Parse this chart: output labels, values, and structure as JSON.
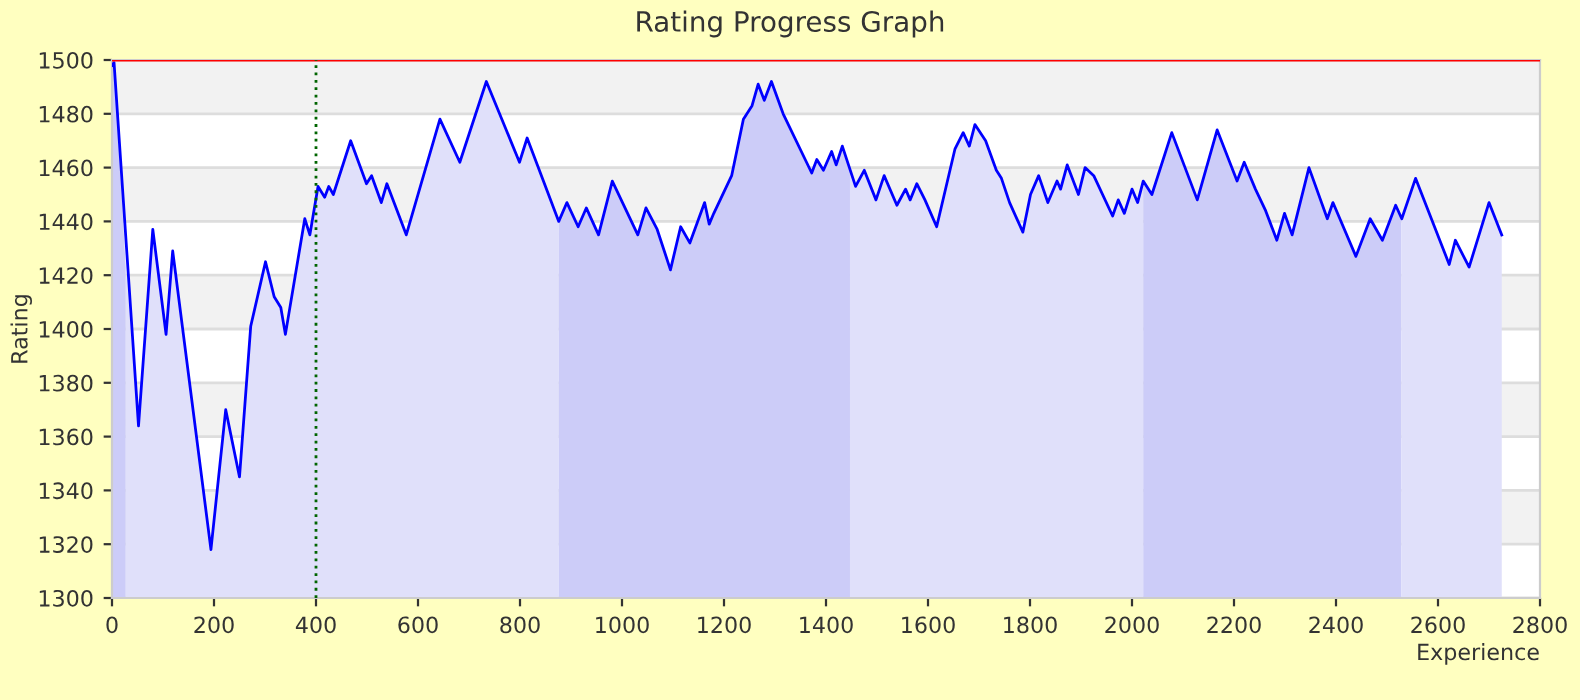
{
  "chart_data": {
    "type": "area",
    "title": "Rating Progress Graph",
    "xlabel": "Experience",
    "ylabel": "Rating",
    "xlim": [
      0,
      2800
    ],
    "xticks": [
      0,
      200,
      400,
      600,
      800,
      1000,
      1200,
      1400,
      1600,
      1800,
      2000,
      2200,
      2400,
      2600,
      2800
    ],
    "ylim": [
      1300,
      1500
    ],
    "yticks": [
      1300,
      1320,
      1340,
      1360,
      1380,
      1400,
      1420,
      1440,
      1460,
      1480,
      1500
    ],
    "grid": "y",
    "legend": false,
    "marker": "none",
    "line_style": "solid",
    "ref_lines": [
      {
        "axis": "y",
        "value": 1500,
        "color": "#ff0000",
        "line_style": "solid"
      },
      {
        "axis": "x",
        "value": 400,
        "color": "#006400",
        "line_style": "dotted"
      }
    ],
    "series": [
      {
        "type": "area",
        "color": "#ccccf8",
        "x": [
          0,
          4,
          27
        ],
        "values": [
          1498,
          1499,
          1423
        ]
      },
      {
        "type": "area",
        "color": "#e0e0fa",
        "x": [
          27,
          52,
          80,
          106,
          119,
          194,
          223,
          250,
          272,
          301,
          318,
          331,
          340,
          378,
          388,
          404,
          417,
          425,
          434,
          468,
          499,
          509,
          528,
          539,
          577,
          643,
          682,
          734,
          799,
          814,
          876
        ],
        "values": [
          1423,
          1364,
          1437,
          1398,
          1429,
          1318,
          1370,
          1345,
          1401,
          1425,
          1412,
          1408,
          1398,
          1441,
          1435,
          1453,
          1449,
          1453,
          1450,
          1470,
          1454,
          1457,
          1447,
          1454,
          1435,
          1478,
          1462,
          1492,
          1462,
          1471,
          1440
        ]
      },
      {
        "type": "area",
        "color": "#ccccf8",
        "x": [
          876,
          892,
          914,
          930,
          954,
          981,
          1031,
          1047,
          1069,
          1095,
          1115,
          1133,
          1162,
          1171,
          1180,
          1215,
          1238,
          1255,
          1267,
          1279,
          1293,
          1316,
          1372,
          1382,
          1395,
          1411,
          1420,
          1432,
          1447
        ],
        "values": [
          1440,
          1447,
          1438,
          1445,
          1435,
          1455,
          1435,
          1445,
          1437,
          1422,
          1438,
          1432,
          1447,
          1439,
          1443,
          1457,
          1478,
          1483,
          1491,
          1485,
          1492,
          1480,
          1458,
          1463,
          1459,
          1466,
          1461,
          1468,
          1459
        ]
      },
      {
        "type": "area",
        "color": "#e0e0fa",
        "x": [
          1447,
          1458,
          1475,
          1498,
          1514,
          1539,
          1556,
          1565,
          1578,
          1594,
          1617,
          1653,
          1669,
          1681,
          1692,
          1713,
          1734,
          1744,
          1760,
          1786,
          1801,
          1817,
          1835,
          1853,
          1860,
          1873,
          1895,
          1908,
          1925,
          1962,
          1973,
          1985,
          2000,
          2011,
          2022
        ],
        "values": [
          1459,
          1453,
          1459,
          1448,
          1457,
          1446,
          1452,
          1448,
          1454,
          1448,
          1438,
          1467,
          1473,
          1468,
          1476,
          1470,
          1459,
          1456,
          1447,
          1436,
          1450,
          1457,
          1447,
          1455,
          1452,
          1461,
          1450,
          1460,
          1457,
          1442,
          1448,
          1443,
          1452,
          1447,
          1455
        ]
      },
      {
        "type": "area",
        "color": "#ccccf8",
        "x": [
          2022,
          2039,
          2078,
          2128,
          2167,
          2206,
          2220,
          2242,
          2262,
          2284,
          2299,
          2314,
          2347,
          2383,
          2394,
          2439,
          2467,
          2491,
          2517,
          2528
        ],
        "values": [
          1455,
          1450,
          1473,
          1448,
          1474,
          1455,
          1462,
          1452,
          1444,
          1433,
          1443,
          1435,
          1460,
          1441,
          1447,
          1427,
          1441,
          1433,
          1446,
          1441
        ]
      },
      {
        "type": "area",
        "color": "#e0e0fa",
        "x": [
          2528,
          2556,
          2622,
          2634,
          2661,
          2700,
          2725
        ],
        "values": [
          1441,
          1456,
          1424,
          1433,
          1423,
          1447,
          1435
        ]
      },
      {
        "type": "line",
        "color": "#0000ff",
        "x": [
          0,
          4,
          52,
          80,
          106,
          119,
          194,
          223,
          250,
          272,
          301,
          318,
          331,
          340,
          378,
          388,
          404,
          417,
          425,
          434,
          468,
          499,
          509,
          528,
          539,
          577,
          643,
          682,
          734,
          799,
          814,
          876,
          892,
          914,
          930,
          954,
          981,
          1031,
          1047,
          1069,
          1095,
          1115,
          1133,
          1162,
          1171,
          1180,
          1215,
          1238,
          1255,
          1267,
          1279,
          1293,
          1316,
          1372,
          1382,
          1395,
          1411,
          1420,
          1432,
          1458,
          1475,
          1498,
          1514,
          1539,
          1556,
          1565,
          1578,
          1594,
          1617,
          1653,
          1669,
          1681,
          1692,
          1713,
          1734,
          1744,
          1760,
          1786,
          1801,
          1817,
          1835,
          1853,
          1860,
          1873,
          1895,
          1908,
          1925,
          1962,
          1973,
          1985,
          2000,
          2011,
          2022,
          2039,
          2078,
          2128,
          2167,
          2206,
          2220,
          2242,
          2262,
          2284,
          2299,
          2314,
          2347,
          2383,
          2394,
          2439,
          2467,
          2491,
          2517,
          2529,
          2556,
          2622,
          2634,
          2661,
          2700,
          2725
        ],
        "values": [
          1498,
          1499,
          1364,
          1437,
          1398,
          1429,
          1318,
          1370,
          1345,
          1401,
          1425,
          1412,
          1408,
          1398,
          1441,
          1435,
          1453,
          1449,
          1453,
          1450,
          1470,
          1454,
          1457,
          1447,
          1454,
          1435,
          1478,
          1462,
          1492,
          1462,
          1471,
          1440,
          1447,
          1438,
          1445,
          1435,
          1455,
          1435,
          1445,
          1437,
          1422,
          1438,
          1432,
          1447,
          1439,
          1443,
          1457,
          1478,
          1483,
          1491,
          1485,
          1492,
          1480,
          1458,
          1463,
          1459,
          1466,
          1461,
          1468,
          1453,
          1459,
          1448,
          1457,
          1446,
          1452,
          1448,
          1454,
          1448,
          1438,
          1467,
          1473,
          1468,
          1476,
          1470,
          1459,
          1456,
          1447,
          1436,
          1450,
          1457,
          1447,
          1455,
          1452,
          1461,
          1450,
          1460,
          1457,
          1442,
          1448,
          1443,
          1452,
          1447,
          1455,
          1450,
          1473,
          1448,
          1474,
          1455,
          1462,
          1452,
          1444,
          1433,
          1443,
          1435,
          1460,
          1441,
          1447,
          1427,
          1441,
          1433,
          1446,
          1441,
          1456,
          1424,
          1433,
          1423,
          1447,
          1435
        ]
      }
    ]
  }
}
